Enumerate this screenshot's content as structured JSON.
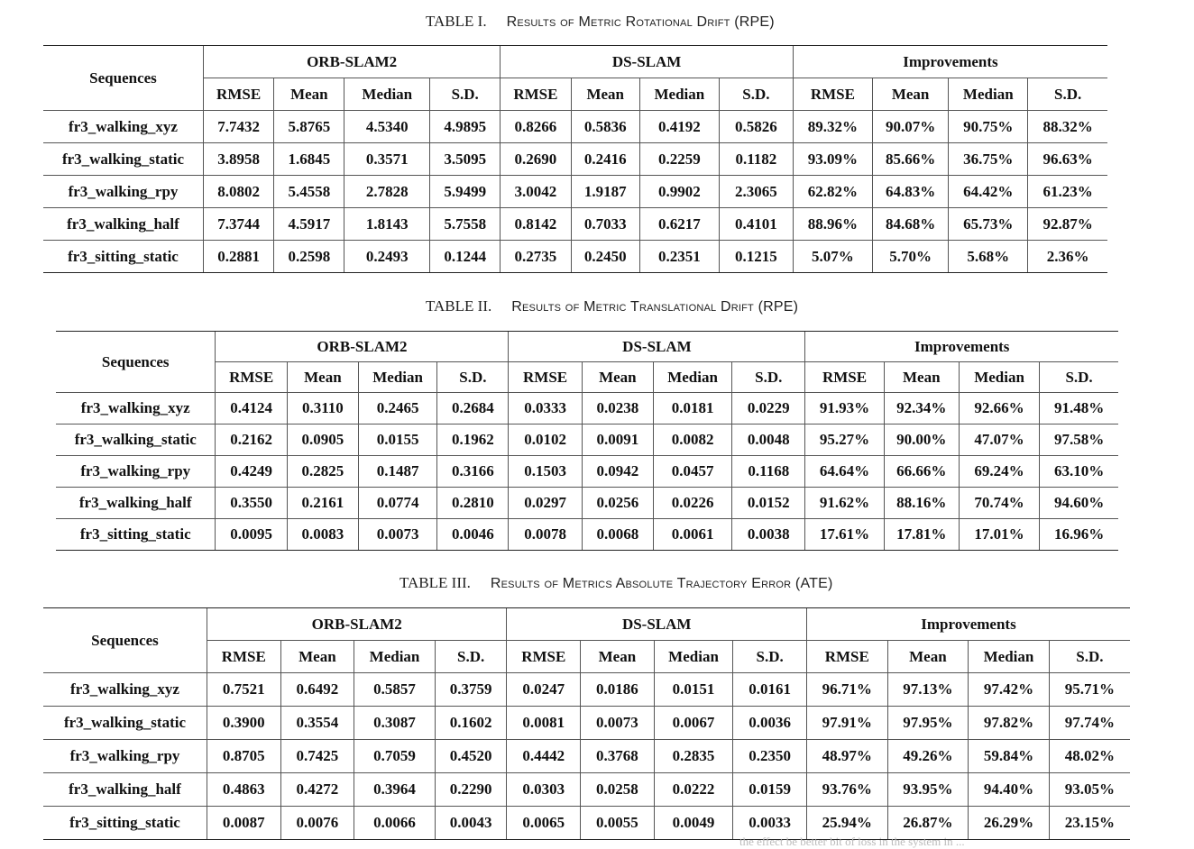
{
  "tables": [
    {
      "label": "TABLE I.",
      "title": "Results of Metric Rotational Drift (RPE)",
      "corner": "Sequences",
      "groups": [
        "ORB-SLAM2",
        "DS-SLAM",
        "Improvements"
      ],
      "subheaders": [
        "RMSE",
        "Mean",
        "Median",
        "S.D.",
        "RMSE",
        "Mean",
        "Median",
        "S.D.",
        "RMSE",
        "Mean",
        "Median",
        "S.D."
      ],
      "rows": [
        {
          "name": "fr3_walking_xyz",
          "cells": [
            "7.7432",
            "5.8765",
            "4.5340",
            "4.9895",
            "0.8266",
            "0.5836",
            "0.4192",
            "0.5826",
            "89.32%",
            "90.07%",
            "90.75%",
            "88.32%"
          ]
        },
        {
          "name": "fr3_walking_static",
          "cells": [
            "3.8958",
            "1.6845",
            "0.3571",
            "3.5095",
            "0.2690",
            "0.2416",
            "0.2259",
            "0.1182",
            "93.09%",
            "85.66%",
            "36.75%",
            "96.63%"
          ]
        },
        {
          "name": "fr3_walking_rpy",
          "cells": [
            "8.0802",
            "5.4558",
            "2.7828",
            "5.9499",
            "3.0042",
            "1.9187",
            "0.9902",
            "2.3065",
            "62.82%",
            "64.83%",
            "64.42%",
            "61.23%"
          ]
        },
        {
          "name": "fr3_walking_half",
          "cells": [
            "7.3744",
            "4.5917",
            "1.8143",
            "5.7558",
            "0.8142",
            "0.7033",
            "0.6217",
            "0.4101",
            "88.96%",
            "84.68%",
            "65.73%",
            "92.87%"
          ]
        },
        {
          "name": "fr3_sitting_static",
          "cells": [
            "0.2881",
            "0.2598",
            "0.2493",
            "0.1244",
            "0.2735",
            "0.2450",
            "0.2351",
            "0.1215",
            "5.07%",
            "5.70%",
            "5.68%",
            "2.36%"
          ]
        }
      ]
    },
    {
      "label": "TABLE II.",
      "title": "Results of Metric Translational Drift (RPE)",
      "corner": "Sequences",
      "groups": [
        "ORB-SLAM2",
        "DS-SLAM",
        "Improvements"
      ],
      "subheaders": [
        "RMSE",
        "Mean",
        "Median",
        "S.D.",
        "RMSE",
        "Mean",
        "Median",
        "S.D.",
        "RMSE",
        "Mean",
        "Median",
        "S.D."
      ],
      "rows": [
        {
          "name": "fr3_walking_xyz",
          "cells": [
            "0.4124",
            "0.3110",
            "0.2465",
            "0.2684",
            "0.0333",
            "0.0238",
            "0.0181",
            "0.0229",
            "91.93%",
            "92.34%",
            "92.66%",
            "91.48%"
          ]
        },
        {
          "name": "fr3_walking_static",
          "cells": [
            "0.2162",
            "0.0905",
            "0.0155",
            "0.1962",
            "0.0102",
            "0.0091",
            "0.0082",
            "0.0048",
            "95.27%",
            "90.00%",
            "47.07%",
            "97.58%"
          ]
        },
        {
          "name": "fr3_walking_rpy",
          "cells": [
            "0.4249",
            "0.2825",
            "0.1487",
            "0.3166",
            "0.1503",
            "0.0942",
            "0.0457",
            "0.1168",
            "64.64%",
            "66.66%",
            "69.24%",
            "63.10%"
          ]
        },
        {
          "name": "fr3_walking_half",
          "cells": [
            "0.3550",
            "0.2161",
            "0.0774",
            "0.2810",
            "0.0297",
            "0.0256",
            "0.0226",
            "0.0152",
            "91.62%",
            "88.16%",
            "70.74%",
            "94.60%"
          ]
        },
        {
          "name": "fr3_sitting_static",
          "cells": [
            "0.0095",
            "0.0083",
            "0.0073",
            "0.0046",
            "0.0078",
            "0.0068",
            "0.0061",
            "0.0038",
            "17.61%",
            "17.81%",
            "17.01%",
            "16.96%"
          ]
        }
      ]
    },
    {
      "label": "TABLE III.",
      "title": "Results of Metrics Absolute Trajectory Error (ATE)",
      "corner": "Sequences",
      "groups": [
        "ORB-SLAM2",
        "DS-SLAM",
        "Improvements"
      ],
      "subheaders": [
        "RMSE",
        "Mean",
        "Median",
        "S.D.",
        "RMSE",
        "Mean",
        "Median",
        "S.D.",
        "RMSE",
        "Mean",
        "Median",
        "S.D."
      ],
      "rows": [
        {
          "name": "fr3_walking_xyz",
          "cells": [
            "0.7521",
            "0.6492",
            "0.5857",
            "0.3759",
            "0.0247",
            "0.0186",
            "0.0151",
            "0.0161",
            "96.71%",
            "97.13%",
            "97.42%",
            "95.71%"
          ]
        },
        {
          "name": "fr3_walking_static",
          "cells": [
            "0.3900",
            "0.3554",
            "0.3087",
            "0.1602",
            "0.0081",
            "0.0073",
            "0.0067",
            "0.0036",
            "97.91%",
            "97.95%",
            "97.82%",
            "97.74%"
          ]
        },
        {
          "name": "fr3_walking_rpy",
          "cells": [
            "0.8705",
            "0.7425",
            "0.7059",
            "0.4520",
            "0.4442",
            "0.3768",
            "0.2835",
            "0.2350",
            "48.97%",
            "49.26%",
            "59.84%",
            "48.02%"
          ]
        },
        {
          "name": "fr3_walking_half",
          "cells": [
            "0.4863",
            "0.4272",
            "0.3964",
            "0.2290",
            "0.0303",
            "0.0258",
            "0.0222",
            "0.0159",
            "93.76%",
            "93.95%",
            "94.40%",
            "93.05%"
          ]
        },
        {
          "name": "fr3_sitting_static",
          "cells": [
            "0.0087",
            "0.0076",
            "0.0066",
            "0.0043",
            "0.0065",
            "0.0055",
            "0.0049",
            "0.0033",
            "25.94%",
            "26.87%",
            "26.29%",
            "23.15%"
          ]
        }
      ]
    }
  ],
  "bottom_text": "the effect be better bit of loss in the system in ..."
}
